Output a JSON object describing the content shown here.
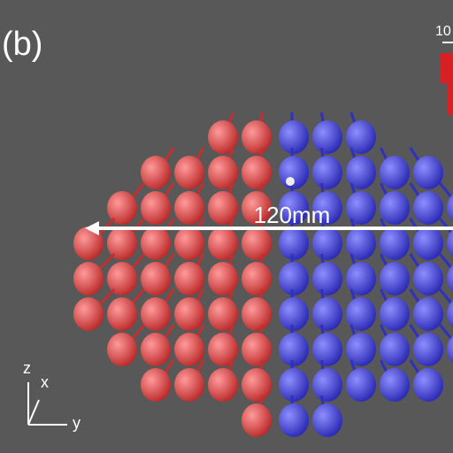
{
  "panel_label": "(b)",
  "scale_label": "120mm",
  "legend_label": "10",
  "axes": {
    "z": "z",
    "x": "x",
    "y": "y"
  }
}
